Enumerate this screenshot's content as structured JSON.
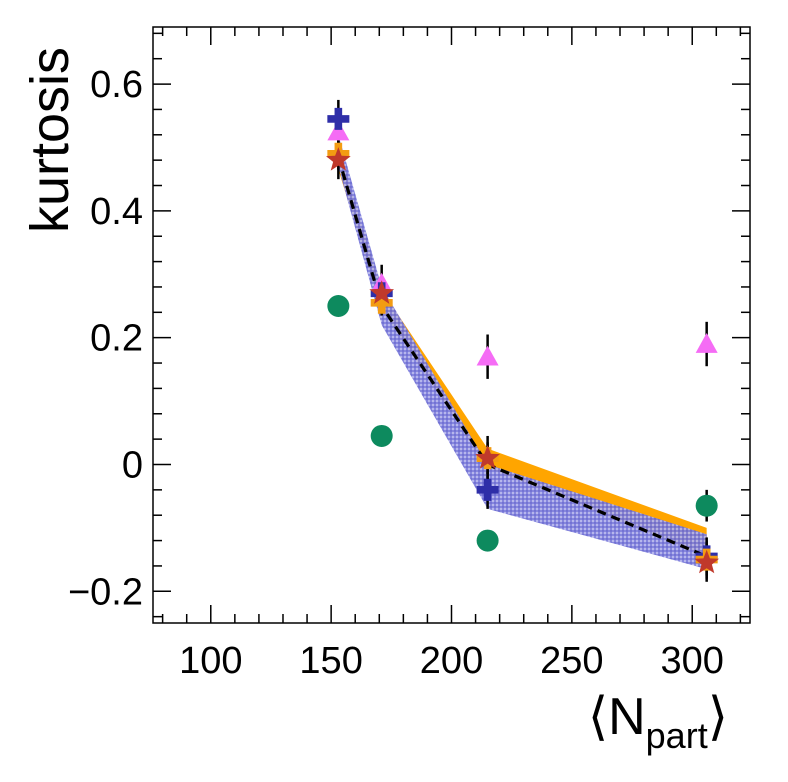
{
  "chart_data": {
    "type": "scatter",
    "title": "",
    "xlabel": "⟨N",
    "xlabel_sub": "part",
    "xlabel_close": "⟩",
    "ylabel": "kurtosis",
    "xlim": [
      76,
      324
    ],
    "ylim": [
      -0.25,
      0.69
    ],
    "xticks": [
      100,
      150,
      200,
      250,
      300
    ],
    "xtick_labels": [
      "100",
      "150",
      "200",
      "250",
      "300"
    ],
    "yticks": [
      -0.2,
      0,
      0.2,
      0.4,
      0.6
    ],
    "ytick_labels": [
      "−0.2",
      "0",
      "0.2",
      "0.4",
      "0.6"
    ],
    "x": [
      153,
      171,
      215,
      306
    ],
    "bands": [
      {
        "name": "orange band",
        "color": "#ffa500",
        "upper": [
          0.5,
          0.275,
          0.025,
          -0.1
        ],
        "lower": [
          0.465,
          0.245,
          -0.005,
          -0.145
        ]
      },
      {
        "name": "blue hatched band",
        "color": "#6b6bd6",
        "upper": [
          0.52,
          0.28,
          0.0,
          -0.11
        ],
        "lower": [
          0.47,
          0.22,
          -0.07,
          -0.165
        ]
      }
    ],
    "dashed_line": {
      "name": "dashed curve",
      "color": "#000000",
      "values": [
        0.485,
        0.25,
        0.0,
        -0.145
      ]
    },
    "series": [
      {
        "name": "green circles",
        "marker": "circle",
        "color": "#0d8a5e",
        "values": [
          0.25,
          0.045,
          -0.12,
          -0.065
        ],
        "errors": [
          0.0,
          0.0,
          0.0,
          0.025
        ]
      },
      {
        "name": "magenta triangles",
        "marker": "triangle",
        "color": "#f56cf5",
        "values": [
          0.525,
          0.285,
          0.17,
          0.19
        ],
        "errors": [
          0.035,
          0.03,
          0.035,
          0.035
        ]
      },
      {
        "name": "blue crosses",
        "marker": "cross",
        "color": "#2e2ea8",
        "values": [
          0.545,
          0.27,
          -0.04,
          -0.145
        ],
        "errors": [
          0.03,
          0.025,
          0.03,
          0.03
        ]
      },
      {
        "name": "orange crosses",
        "marker": "cross",
        "color": "#f39c12",
        "values": [
          0.49,
          0.255,
          0.01,
          -0.15
        ],
        "errors": [
          0.025,
          0.02,
          0.025,
          0.03
        ]
      },
      {
        "name": "red stars",
        "marker": "star",
        "color": "#c0392b",
        "values": [
          0.48,
          0.27,
          0.01,
          -0.155
        ],
        "errors": [
          0.03,
          0.025,
          0.035,
          0.03
        ]
      }
    ]
  }
}
